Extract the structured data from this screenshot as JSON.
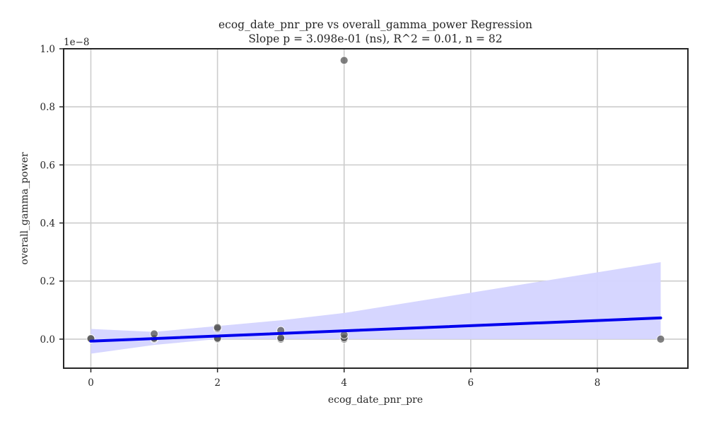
{
  "chart_data": {
    "type": "scatter",
    "title": "ecog_date_pnr_pre vs overall_gamma_power Regression",
    "subtitle": "Slope p = 3.098e-01 (ns), R^2 = 0.01, n = 82",
    "xlabel": "ecog_date_pnr_pre",
    "ylabel": "overall_gamma_power",
    "y_offset_label": "1e−8",
    "xlim": [
      -0.43,
      9.43
    ],
    "ylim": [
      -0.1,
      1.0
    ],
    "xticks": [
      0,
      2,
      4,
      6,
      8
    ],
    "xtick_labels": [
      "0",
      "2",
      "4",
      "6",
      "8"
    ],
    "yticks": [
      0.0,
      0.2,
      0.4,
      0.6,
      0.8,
      1.0
    ],
    "ytick_labels": [
      "0.0",
      "0.2",
      "0.4",
      "0.6",
      "0.8",
      "1.0"
    ],
    "grid": true,
    "points": [
      {
        "x": 0,
        "y": 0.0
      },
      {
        "x": 0,
        "y": 0.002
      },
      {
        "x": 1,
        "y": 0.0
      },
      {
        "x": 1,
        "y": 0.003
      },
      {
        "x": 1,
        "y": 0.018
      },
      {
        "x": 2,
        "y": 0.0
      },
      {
        "x": 2,
        "y": 0.003
      },
      {
        "x": 2,
        "y": 0.036
      },
      {
        "x": 2,
        "y": 0.04
      },
      {
        "x": 3,
        "y": 0.0
      },
      {
        "x": 3,
        "y": 0.004
      },
      {
        "x": 3,
        "y": 0.03
      },
      {
        "x": 4,
        "y": 0.0
      },
      {
        "x": 4,
        "y": 0.004
      },
      {
        "x": 4,
        "y": 0.015
      },
      {
        "x": 4,
        "y": 0.96
      },
      {
        "x": 9,
        "y": 0.0
      }
    ],
    "regression": {
      "x": [
        0,
        9
      ],
      "y": [
        -0.007,
        0.073
      ]
    },
    "confidence_band": {
      "x": [
        0,
        1,
        2,
        3,
        4,
        5,
        6,
        7,
        8,
        9
      ],
      "lower": [
        -0.05,
        -0.02,
        0.0,
        0.0,
        0.0,
        0.0,
        0.0,
        0.0,
        0.0,
        0.0
      ],
      "upper": [
        0.035,
        0.025,
        0.045,
        0.065,
        0.09,
        0.125,
        0.16,
        0.195,
        0.23,
        0.265
      ]
    },
    "colors": {
      "points": "#555555",
      "line": "#0000ee",
      "band": "#d4d4ff",
      "grid": "#cccccc",
      "axes": "#262626"
    }
  }
}
